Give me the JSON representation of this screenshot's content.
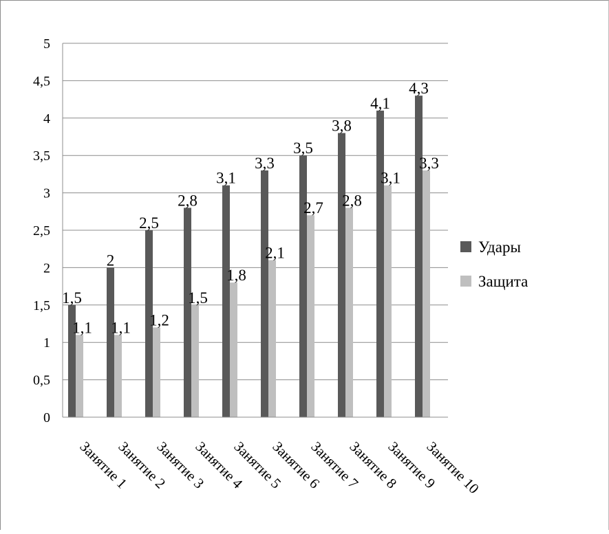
{
  "chart_data": {
    "type": "bar",
    "title": "",
    "xlabel": "",
    "ylabel": "",
    "categories": [
      "Занятие 1",
      "Занятие 2",
      "Занятие 3",
      "Занятие 4",
      "Занятие 5",
      "Занятие 6",
      "Занятие 7",
      "Занятие 8",
      "Занятие 9",
      "Занятие 10"
    ],
    "series": [
      {
        "name": "Удары",
        "color": "#595959",
        "values": [
          1.5,
          2,
          2.5,
          2.8,
          3.1,
          3.3,
          3.5,
          3.8,
          4.1,
          4.3
        ],
        "labels": [
          "1,5",
          "2",
          "2,5",
          "2,8",
          "3,1",
          "3,3",
          "3,5",
          "3,8",
          "4,1",
          "4,3"
        ]
      },
      {
        "name": "Защита",
        "color": "#bfbfbf",
        "values": [
          1.1,
          1.1,
          1.2,
          1.5,
          1.8,
          2.1,
          2.7,
          2.8,
          3.1,
          3.3
        ],
        "labels": [
          "1,1",
          "1,1",
          "1,2",
          "1,5",
          "1,8",
          "2,1",
          "2,7",
          "2,8",
          "3,1",
          "3,3"
        ]
      }
    ],
    "ylim": [
      0,
      5
    ],
    "yticks": [
      0,
      0.5,
      1,
      1.5,
      2,
      2.5,
      3,
      3.5,
      4,
      4.5,
      5
    ],
    "ytick_labels": [
      "0",
      "0,5",
      "1",
      "1,5",
      "2",
      "2,5",
      "3",
      "3,5",
      "4",
      "4,5",
      "5"
    ],
    "grid": true,
    "legend": "right",
    "gridline_color": "#8c8c8c"
  }
}
